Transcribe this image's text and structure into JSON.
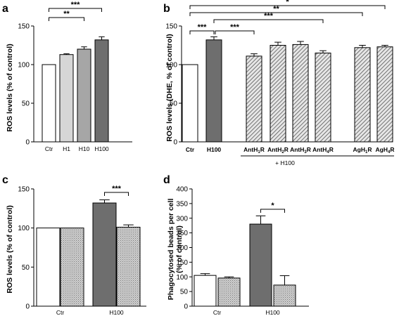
{
  "colors": {
    "white": "#ffffff",
    "light_gray": "#d6d6d6",
    "mid_gray": "#a6a6a6",
    "dark_gray": "#6e6e6e",
    "stipple_gray": "#b3b3b3",
    "hatch_gray": "#9a9a9a"
  },
  "chart_data": [
    {
      "panel": "a",
      "type": "bar",
      "ylabel": "ROS levels (% of control)",
      "ylim": [
        0,
        150
      ],
      "yticks": [
        0,
        50,
        100,
        150
      ],
      "categories": [
        "Ctr",
        "H1",
        "H10",
        "H100"
      ],
      "values": [
        100,
        113,
        120,
        132
      ],
      "errors": [
        0,
        1,
        3,
        4
      ],
      "fills": [
        "white",
        "light_gray",
        "mid_gray",
        "dark_gray"
      ],
      "significance": [
        {
          "from": 0,
          "to": 2,
          "label": "**"
        },
        {
          "from": 0,
          "to": 3,
          "label": "***"
        }
      ]
    },
    {
      "panel": "b",
      "type": "bar",
      "ylabel": "ROS levels (DHE, % of control)",
      "ylim": [
        0,
        150
      ],
      "yticks": [
        0,
        50,
        100,
        150
      ],
      "categories": [
        {
          "text": "Ctr",
          "sub": []
        },
        {
          "text": "H100",
          "sub": []
        },
        {
          "text": "AntH1R",
          "sub": [
            [
              "AntH",
              ""
            ],
            [
              "1",
              "sub"
            ],
            [
              "R",
              ""
            ]
          ]
        },
        {
          "text": "AntH2R",
          "sub": [
            [
              "AntH",
              ""
            ],
            [
              "2",
              "sub"
            ],
            [
              "R",
              ""
            ]
          ]
        },
        {
          "text": "AntH3R",
          "sub": [
            [
              "AntH",
              ""
            ],
            [
              "3",
              "sub"
            ],
            [
              "R",
              ""
            ]
          ]
        },
        {
          "text": "AntH4R",
          "sub": [
            [
              "AntH",
              ""
            ],
            [
              "4",
              "sub"
            ],
            [
              "R",
              ""
            ]
          ]
        },
        {
          "text": "AgH1R",
          "sub": [
            [
              "AgH",
              ""
            ],
            [
              "1",
              "sub"
            ],
            [
              "R",
              ""
            ]
          ]
        },
        {
          "text": "AgH4R",
          "sub": [
            [
              "AgH",
              ""
            ],
            [
              "4",
              "sub"
            ],
            [
              "R",
              ""
            ]
          ]
        }
      ],
      "group_label": "+ H100",
      "values": [
        100,
        132,
        111,
        125,
        126,
        115,
        122,
        123
      ],
      "errors": [
        0,
        4,
        3,
        4,
        4,
        3,
        3,
        2
      ],
      "fills": [
        "white",
        "dark_gray",
        "hatch",
        "hatch",
        "hatch",
        "hatch",
        "hatch",
        "hatch"
      ],
      "significance": [
        {
          "from": 0,
          "to": 1,
          "label": "***"
        },
        {
          "from": 1,
          "to": 2,
          "label": "***"
        },
        {
          "from": 1,
          "to": 5,
          "label": "***"
        },
        {
          "from": 0,
          "to": 6,
          "label": "**"
        },
        {
          "from": 0,
          "to": 7,
          "label": "*"
        }
      ]
    },
    {
      "panel": "c",
      "type": "bar",
      "ylabel": "ROS levels (% of control)",
      "ylim": [
        0,
        150
      ],
      "yticks": [
        0,
        50,
        100,
        150
      ],
      "groups": [
        "Ctr",
        "H100"
      ],
      "values": [
        100,
        100,
        132,
        101
      ],
      "errors": [
        0,
        0,
        4,
        3
      ],
      "fills": [
        "white",
        "stipple",
        "dark_gray",
        "stipple"
      ],
      "significance": [
        {
          "from": 2,
          "to": 3,
          "label": "***"
        }
      ]
    },
    {
      "panel": "d",
      "type": "bar",
      "ylabel": "Phagocytosed beads per cell (% of control)",
      "ylabel_lines": [
        "Phagocytosed beads per cell",
        "(% of control)"
      ],
      "ylim": [
        0,
        400
      ],
      "yticks": [
        0,
        50,
        100,
        150,
        200,
        250,
        300,
        350,
        400
      ],
      "groups": [
        "Ctr",
        "H100"
      ],
      "values": [
        105,
        96,
        280,
        72
      ],
      "errors": [
        6,
        4,
        28,
        32
      ],
      "fills": [
        "white",
        "stipple",
        "dark_gray",
        "stipple"
      ],
      "significance": [
        {
          "from": 2,
          "to": 3,
          "label": "*"
        }
      ]
    }
  ]
}
